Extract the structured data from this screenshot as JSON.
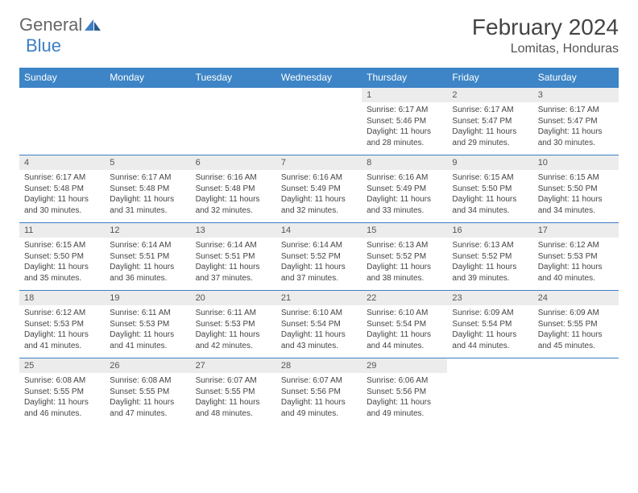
{
  "brand": {
    "part1": "General",
    "part2": "Blue"
  },
  "title": "February 2024",
  "location": "Lomitas, Honduras",
  "colors": {
    "header_bg": "#3d85c6",
    "header_text": "#ffffff",
    "border": "#3d7fc4",
    "daynum_bg": "#ececec",
    "text": "#444444",
    "page_bg": "#ffffff"
  },
  "weekdays": [
    "Sunday",
    "Monday",
    "Tuesday",
    "Wednesday",
    "Thursday",
    "Friday",
    "Saturday"
  ],
  "weeks": [
    [
      null,
      null,
      null,
      null,
      {
        "n": "1",
        "sr": "6:17 AM",
        "ss": "5:46 PM",
        "dl": "11 hours and 28 minutes."
      },
      {
        "n": "2",
        "sr": "6:17 AM",
        "ss": "5:47 PM",
        "dl": "11 hours and 29 minutes."
      },
      {
        "n": "3",
        "sr": "6:17 AM",
        "ss": "5:47 PM",
        "dl": "11 hours and 30 minutes."
      }
    ],
    [
      {
        "n": "4",
        "sr": "6:17 AM",
        "ss": "5:48 PM",
        "dl": "11 hours and 30 minutes."
      },
      {
        "n": "5",
        "sr": "6:17 AM",
        "ss": "5:48 PM",
        "dl": "11 hours and 31 minutes."
      },
      {
        "n": "6",
        "sr": "6:16 AM",
        "ss": "5:48 PM",
        "dl": "11 hours and 32 minutes."
      },
      {
        "n": "7",
        "sr": "6:16 AM",
        "ss": "5:49 PM",
        "dl": "11 hours and 32 minutes."
      },
      {
        "n": "8",
        "sr": "6:16 AM",
        "ss": "5:49 PM",
        "dl": "11 hours and 33 minutes."
      },
      {
        "n": "9",
        "sr": "6:15 AM",
        "ss": "5:50 PM",
        "dl": "11 hours and 34 minutes."
      },
      {
        "n": "10",
        "sr": "6:15 AM",
        "ss": "5:50 PM",
        "dl": "11 hours and 34 minutes."
      }
    ],
    [
      {
        "n": "11",
        "sr": "6:15 AM",
        "ss": "5:50 PM",
        "dl": "11 hours and 35 minutes."
      },
      {
        "n": "12",
        "sr": "6:14 AM",
        "ss": "5:51 PM",
        "dl": "11 hours and 36 minutes."
      },
      {
        "n": "13",
        "sr": "6:14 AM",
        "ss": "5:51 PM",
        "dl": "11 hours and 37 minutes."
      },
      {
        "n": "14",
        "sr": "6:14 AM",
        "ss": "5:52 PM",
        "dl": "11 hours and 37 minutes."
      },
      {
        "n": "15",
        "sr": "6:13 AM",
        "ss": "5:52 PM",
        "dl": "11 hours and 38 minutes."
      },
      {
        "n": "16",
        "sr": "6:13 AM",
        "ss": "5:52 PM",
        "dl": "11 hours and 39 minutes."
      },
      {
        "n": "17",
        "sr": "6:12 AM",
        "ss": "5:53 PM",
        "dl": "11 hours and 40 minutes."
      }
    ],
    [
      {
        "n": "18",
        "sr": "6:12 AM",
        "ss": "5:53 PM",
        "dl": "11 hours and 41 minutes."
      },
      {
        "n": "19",
        "sr": "6:11 AM",
        "ss": "5:53 PM",
        "dl": "11 hours and 41 minutes."
      },
      {
        "n": "20",
        "sr": "6:11 AM",
        "ss": "5:53 PM",
        "dl": "11 hours and 42 minutes."
      },
      {
        "n": "21",
        "sr": "6:10 AM",
        "ss": "5:54 PM",
        "dl": "11 hours and 43 minutes."
      },
      {
        "n": "22",
        "sr": "6:10 AM",
        "ss": "5:54 PM",
        "dl": "11 hours and 44 minutes."
      },
      {
        "n": "23",
        "sr": "6:09 AM",
        "ss": "5:54 PM",
        "dl": "11 hours and 44 minutes."
      },
      {
        "n": "24",
        "sr": "6:09 AM",
        "ss": "5:55 PM",
        "dl": "11 hours and 45 minutes."
      }
    ],
    [
      {
        "n": "25",
        "sr": "6:08 AM",
        "ss": "5:55 PM",
        "dl": "11 hours and 46 minutes."
      },
      {
        "n": "26",
        "sr": "6:08 AM",
        "ss": "5:55 PM",
        "dl": "11 hours and 47 minutes."
      },
      {
        "n": "27",
        "sr": "6:07 AM",
        "ss": "5:55 PM",
        "dl": "11 hours and 48 minutes."
      },
      {
        "n": "28",
        "sr": "6:07 AM",
        "ss": "5:56 PM",
        "dl": "11 hours and 49 minutes."
      },
      {
        "n": "29",
        "sr": "6:06 AM",
        "ss": "5:56 PM",
        "dl": "11 hours and 49 minutes."
      },
      null,
      null
    ]
  ],
  "labels": {
    "sunrise": "Sunrise:",
    "sunset": "Sunset:",
    "daylight": "Daylight:"
  }
}
